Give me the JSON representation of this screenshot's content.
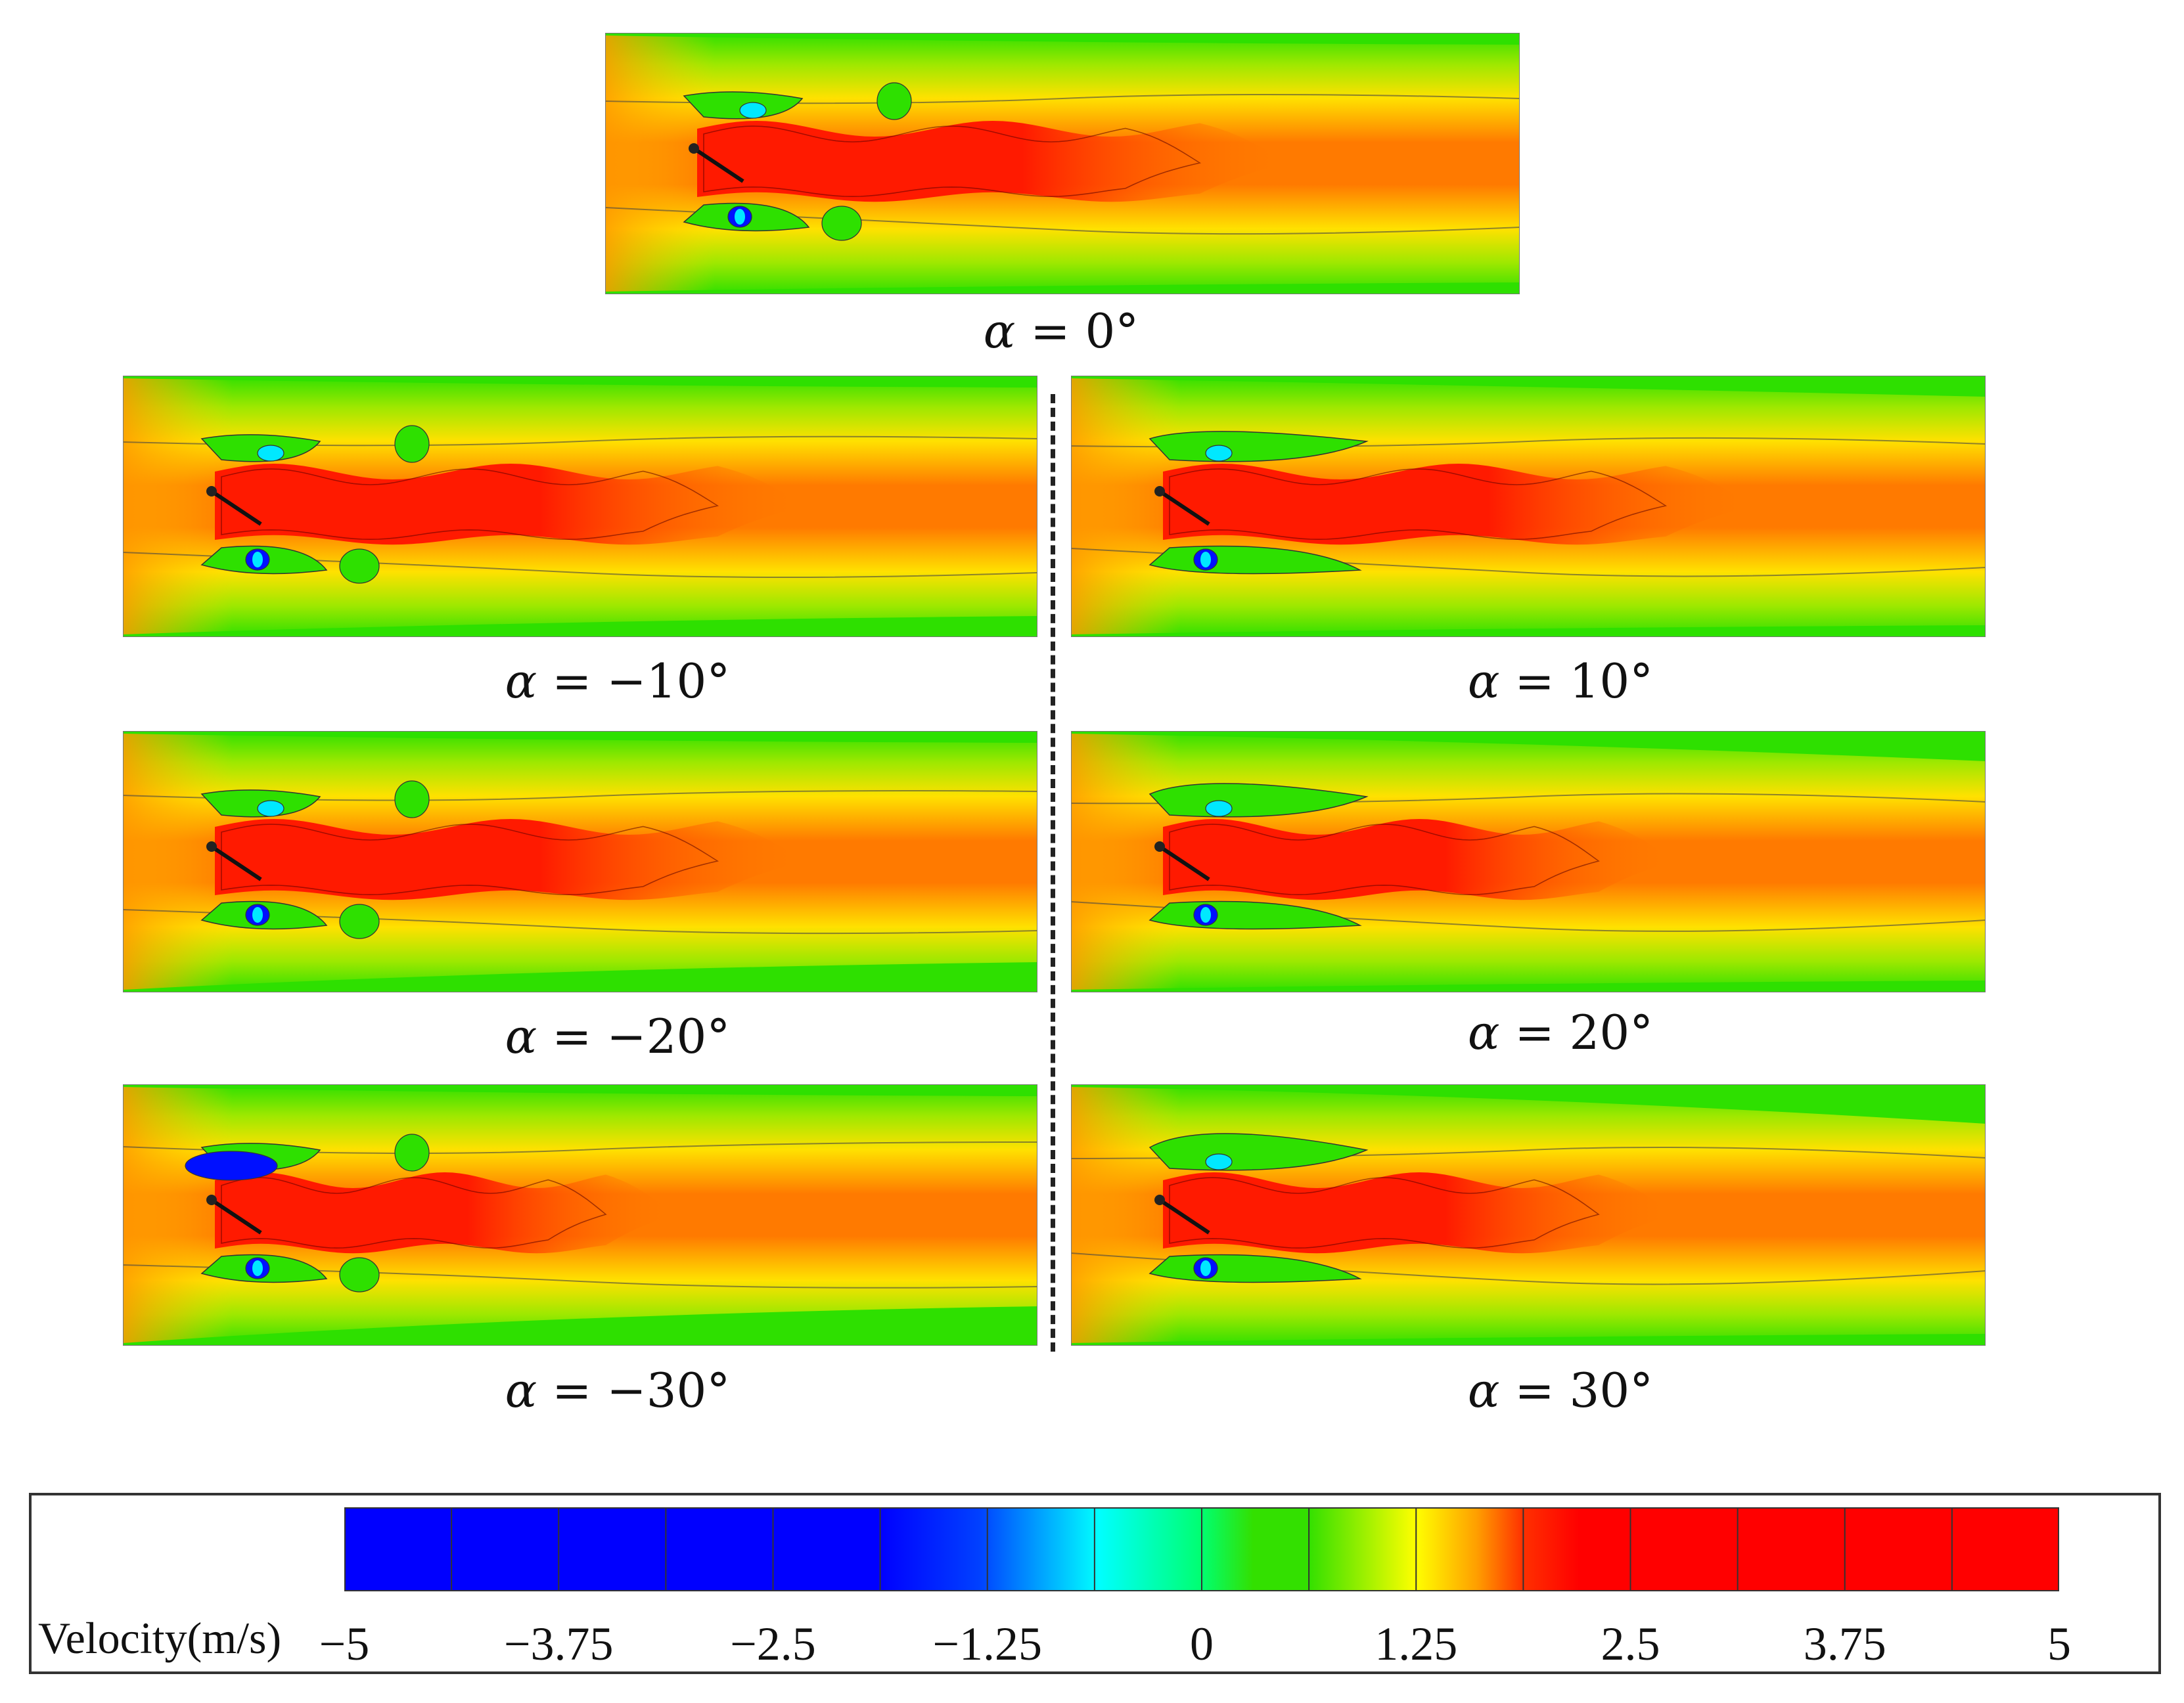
{
  "figure": {
    "colors": {
      "red": "#ff1a00",
      "orange": "#ff7a00",
      "yellow": "#ffe100",
      "green": "#2ee000",
      "cyan": "#00e8ff",
      "blue": "#0010ff"
    },
    "panels": [
      {
        "id": "p0",
        "caption_symbol": "α",
        "caption_rest": " = 0°",
        "angle": 0
      },
      {
        "id": "pm10",
        "caption_symbol": "α",
        "caption_rest": " = −10°",
        "angle": -10
      },
      {
        "id": "p10",
        "caption_symbol": "α",
        "caption_rest": " = 10°",
        "angle": 10
      },
      {
        "id": "pm20",
        "caption_symbol": "α",
        "caption_rest": " = −20°",
        "angle": -20
      },
      {
        "id": "p20",
        "caption_symbol": "α",
        "caption_rest": " = 20°",
        "angle": 20
      },
      {
        "id": "pm30",
        "caption_symbol": "α",
        "caption_rest": " = −30°",
        "angle": -30
      },
      {
        "id": "p30",
        "caption_symbol": "α",
        "caption_rest": " = 30°",
        "angle": 30
      }
    ]
  },
  "legend": {
    "title": "Velocity(m/s)",
    "min": -5,
    "max": 5,
    "segments": 16,
    "ticks": [
      "−5",
      "−3.75",
      "−2.5",
      "−1.25",
      "0",
      "1.25",
      "2.5",
      "3.75",
      "5"
    ]
  }
}
